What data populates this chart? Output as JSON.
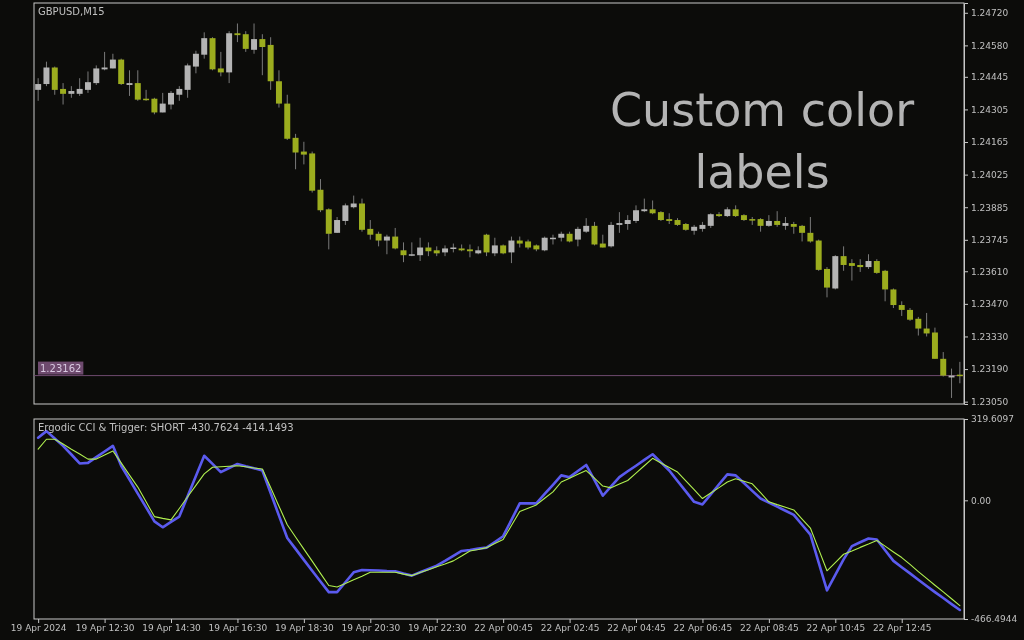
{
  "chart_data": [
    {
      "type": "candlestick",
      "title": "GBPUSD,M15",
      "categories": [
        null,
        null,
        null,
        null,
        null,
        null,
        null,
        null,
        null,
        null,
        null,
        null,
        null,
        null,
        null,
        null,
        null,
        null,
        null,
        null,
        null,
        null,
        null,
        null,
        null,
        null,
        null,
        null,
        null,
        null,
        null,
        null,
        null,
        null,
        null,
        null,
        null,
        null,
        null,
        null,
        null,
        null,
        null,
        null,
        null,
        null,
        null,
        null,
        null,
        null,
        null,
        null,
        null,
        null,
        null,
        null,
        null,
        null,
        null,
        null,
        null,
        null,
        null,
        null,
        null,
        null,
        null,
        null,
        null,
        null,
        null,
        null,
        null,
        null,
        null,
        null,
        null,
        null,
        null,
        null,
        null,
        null,
        null,
        null,
        null,
        null,
        null,
        null,
        null,
        null,
        null,
        null,
        null,
        null,
        null,
        null,
        null,
        null,
        null,
        null,
        null,
        null,
        null,
        null,
        null,
        null,
        null,
        null,
        null,
        null,
        null,
        null
      ],
      "ohlc": [
        [
          1.24389,
          1.24439,
          1.24342,
          1.24414
        ],
        [
          1.24414,
          1.2451,
          1.24405,
          1.24485
        ],
        [
          1.24485,
          1.24489,
          1.24368,
          1.24389
        ],
        [
          1.24393,
          1.24418,
          1.24326,
          1.24372
        ],
        [
          1.24372,
          1.24405,
          1.24355,
          1.24384
        ],
        [
          1.24372,
          1.24439,
          1.24363,
          1.24393
        ],
        [
          1.24389,
          1.24468,
          1.24376,
          1.24422
        ],
        [
          1.24418,
          1.24494,
          1.2441,
          1.24481
        ],
        [
          1.24477,
          1.24552,
          1.24473,
          1.24485
        ],
        [
          1.24481,
          1.24544,
          1.24481,
          1.24519
        ],
        [
          1.24519,
          1.24523,
          1.2441,
          1.24414
        ],
        [
          1.2441,
          1.24473,
          1.24363,
          1.24418
        ],
        [
          1.24418,
          1.24473,
          1.24342,
          1.24347
        ],
        [
          1.24351,
          1.24389,
          1.24342,
          1.24347
        ],
        [
          1.24351,
          1.24355,
          1.24284,
          1.24292
        ],
        [
          1.24292,
          1.24376,
          1.24292,
          1.2433
        ],
        [
          1.24326,
          1.24384,
          1.24305,
          1.24376
        ],
        [
          1.24368,
          1.24405,
          1.24342,
          1.24393
        ],
        [
          1.24389,
          1.24502,
          1.24355,
          1.24494
        ],
        [
          1.24489,
          1.24557,
          1.2446,
          1.24544
        ],
        [
          1.2454,
          1.24636,
          1.24523,
          1.24611
        ],
        [
          1.24611,
          1.24615,
          1.24473,
          1.24477
        ],
        [
          1.24481,
          1.24552,
          1.24447,
          1.24464
        ],
        [
          1.24464,
          1.24641,
          1.24418,
          1.24632
        ],
        [
          1.24632,
          1.24674,
          1.24594,
          1.24624
        ],
        [
          1.24628,
          1.24641,
          1.24552,
          1.24565
        ],
        [
          1.24561,
          1.24674,
          1.24544,
          1.24607
        ],
        [
          1.24607,
          1.24628,
          1.24452,
          1.24573
        ],
        [
          1.24582,
          1.24615,
          1.24389,
          1.24426
        ],
        [
          1.24426,
          1.24473,
          1.24313,
          1.2433
        ],
        [
          1.2433,
          1.24368,
          1.24174,
          1.24179
        ],
        [
          1.24183,
          1.242,
          1.24048,
          1.2412
        ],
        [
          1.24124,
          1.24166,
          1.24069,
          1.24111
        ],
        [
          1.24116,
          1.24124,
          1.23948,
          1.23956
        ],
        [
          1.2396,
          1.24006,
          1.23864,
          1.23872
        ],
        [
          1.23876,
          1.2388,
          1.23704,
          1.23771
        ],
        [
          1.23775,
          1.23843,
          1.23775,
          1.2383
        ],
        [
          1.23826,
          1.23901,
          1.23809,
          1.23893
        ],
        [
          1.23885,
          1.23935,
          1.2388,
          1.23901
        ],
        [
          1.23901,
          1.23922,
          1.2378,
          1.23788
        ],
        [
          1.23792,
          1.2383,
          1.23746,
          1.23767
        ],
        [
          1.23771,
          1.2378,
          1.23717,
          1.23742
        ],
        [
          1.23742,
          1.23767,
          1.23683,
          1.23759
        ],
        [
          1.23759,
          1.23796,
          1.23704,
          1.23708
        ],
        [
          1.237,
          1.23734,
          1.23649,
          1.23679
        ],
        [
          1.23679,
          1.23734,
          1.23675,
          1.23683
        ],
        [
          1.23679,
          1.23754,
          1.23654,
          1.23712
        ],
        [
          1.23712,
          1.23734,
          1.23675,
          1.23696
        ],
        [
          1.237,
          1.23717,
          1.23675,
          1.23687
        ],
        [
          1.23691,
          1.23721,
          1.23675,
          1.23708
        ],
        [
          1.23708,
          1.23729,
          1.23691,
          1.23712
        ],
        [
          1.23708,
          1.23725,
          1.23696,
          1.237
        ],
        [
          1.23704,
          1.23725,
          1.2367,
          1.23696
        ],
        [
          1.23687,
          1.23717,
          1.23683,
          1.237
        ],
        [
          1.23767,
          1.23771,
          1.23675,
          1.23691
        ],
        [
          1.23687,
          1.23754,
          1.23675,
          1.23721
        ],
        [
          1.23721,
          1.23725,
          1.23683,
          1.23687
        ],
        [
          1.23691,
          1.23759,
          1.23645,
          1.23742
        ],
        [
          1.23742,
          1.23759,
          1.23712,
          1.23729
        ],
        [
          1.23738,
          1.23746,
          1.23704,
          1.23712
        ],
        [
          1.23721,
          1.23725,
          1.23696,
          1.23704
        ],
        [
          1.237,
          1.23759,
          1.23696,
          1.23754
        ],
        [
          1.2375,
          1.23767,
          1.23725,
          1.23754
        ],
        [
          1.23754,
          1.2378,
          1.23738,
          1.23771
        ],
        [
          1.23771,
          1.2378,
          1.23734,
          1.23738
        ],
        [
          1.23746,
          1.23801,
          1.23717,
          1.23792
        ],
        [
          1.2378,
          1.23838,
          1.23775,
          1.23805
        ],
        [
          1.23805,
          1.23822,
          1.23721,
          1.23725
        ],
        [
          1.23729,
          1.23767,
          1.23712,
          1.23712
        ],
        [
          1.23717,
          1.23822,
          1.23712,
          1.23809
        ],
        [
          1.23809,
          1.23864,
          1.23775,
          1.23817
        ],
        [
          1.23813,
          1.23851,
          1.23788,
          1.2383
        ],
        [
          1.23826,
          1.23893,
          1.23817,
          1.23872
        ],
        [
          1.23868,
          1.23922,
          1.23864,
          1.23876
        ],
        [
          1.23876,
          1.23914,
          1.23855,
          1.23859
        ],
        [
          1.23864,
          1.23868,
          1.23826,
          1.2383
        ],
        [
          1.23834,
          1.23859,
          1.23813,
          1.23826
        ],
        [
          1.2383,
          1.23838,
          1.23805,
          1.23809
        ],
        [
          1.23813,
          1.23817,
          1.23784,
          1.23788
        ],
        [
          1.23784,
          1.23809,
          1.23767,
          1.23801
        ],
        [
          1.23792,
          1.23822,
          1.2378,
          1.23809
        ],
        [
          1.23805,
          1.23859,
          1.23796,
          1.23855
        ],
        [
          1.23855,
          1.23864,
          1.23843,
          1.23847
        ],
        [
          1.23847,
          1.23885,
          1.23843,
          1.23876
        ],
        [
          1.23876,
          1.23893,
          1.23843,
          1.23847
        ],
        [
          1.23851,
          1.23855,
          1.23826,
          1.2383
        ],
        [
          1.23834,
          1.23843,
          1.23809,
          1.2383
        ],
        [
          1.23834,
          1.23838,
          1.2378,
          1.23805
        ],
        [
          1.23805,
          1.23851,
          1.23801,
          1.23826
        ],
        [
          1.23826,
          1.23868,
          1.23801,
          1.23809
        ],
        [
          1.23805,
          1.23843,
          1.23788,
          1.23817
        ],
        [
          1.23813,
          1.23822,
          1.23771,
          1.23801
        ],
        [
          1.23805,
          1.23809,
          1.23738,
          1.23775
        ],
        [
          1.23775,
          1.23843,
          1.23733,
          1.23738
        ],
        [
          1.23742,
          1.23746,
          1.23612,
          1.23616
        ],
        [
          1.2362,
          1.23628,
          1.23498,
          1.2354
        ],
        [
          1.23536,
          1.23679,
          1.23532,
          1.23675
        ],
        [
          1.23675,
          1.23717,
          1.23612,
          1.23637
        ],
        [
          1.23645,
          1.23662,
          1.2357,
          1.23633
        ],
        [
          1.23637,
          1.23662,
          1.23607,
          1.23628
        ],
        [
          1.23628,
          1.23683,
          1.2362,
          1.23654
        ],
        [
          1.23654,
          1.23662,
          1.23599,
          1.23603
        ],
        [
          1.23612,
          1.23616,
          1.23481,
          1.23532
        ],
        [
          1.23532,
          1.23536,
          1.23452,
          1.23465
        ],
        [
          1.23465,
          1.23481,
          1.23418,
          1.23444
        ],
        [
          1.23444,
          1.23452,
          1.23397,
          1.23402
        ],
        [
          1.23406,
          1.23414,
          1.23334,
          1.23364
        ],
        [
          1.23364,
          1.23431,
          1.2333,
          1.23343
        ],
        [
          1.23347,
          1.23368,
          1.23234,
          1.23234
        ],
        [
          1.23234,
          1.23263,
          1.23158,
          1.23162
        ],
        [
          1.23154,
          1.23192,
          1.23066,
          1.23162
        ],
        [
          1.23166,
          1.23221,
          1.23129,
          1.23162
        ]
      ],
      "colors": [
        "#b4b4b4",
        "#b4b4b4",
        "#9cad1e",
        "#9cad1e",
        "#b4b4b4",
        "#b4b4b4",
        "#b4b4b4",
        "#b4b4b4",
        "#b4b4b4",
        "#b4b4b4",
        "#9cad1e",
        "#b4b4b4",
        "#9cad1e",
        "#9cad1e",
        "#9cad1e",
        "#b4b4b4",
        "#b4b4b4",
        "#b4b4b4",
        "#b4b4b4",
        "#b4b4b4",
        "#b4b4b4",
        "#9cad1e",
        "#9cad1e",
        "#b4b4b4",
        "#9cad1e",
        "#9cad1e",
        "#b4b4b4",
        "#9cad1e",
        "#9cad1e",
        "#9cad1e",
        "#9cad1e",
        "#9cad1e",
        "#9cad1e",
        "#9cad1e",
        "#9cad1e",
        "#9cad1e",
        "#b4b4b4",
        "#b4b4b4",
        "#b4b4b4",
        "#9cad1e",
        "#9cad1e",
        "#9cad1e",
        "#b4b4b4",
        "#9cad1e",
        "#9cad1e",
        "#b4b4b4",
        "#b4b4b4",
        "#9cad1e",
        "#9cad1e",
        "#b4b4b4",
        "#b4b4b4",
        "#9cad1e",
        "#9cad1e",
        "#b4b4b4",
        "#9cad1e",
        "#b4b4b4",
        "#9cad1e",
        "#b4b4b4",
        "#9cad1e",
        "#9cad1e",
        "#9cad1e",
        "#b4b4b4",
        "#b4b4b4",
        "#b4b4b4",
        "#9cad1e",
        "#b4b4b4",
        "#b4b4b4",
        "#9cad1e",
        "#9cad1e",
        "#b4b4b4",
        "#b4b4b4",
        "#b4b4b4",
        "#b4b4b4",
        "#b4b4b4",
        "#9cad1e",
        "#9cad1e",
        "#9cad1e",
        "#9cad1e",
        "#9cad1e",
        "#b4b4b4",
        "#b4b4b4",
        "#b4b4b4",
        "#9cad1e",
        "#b4b4b4",
        "#9cad1e",
        "#9cad1e",
        "#9cad1e",
        "#9cad1e",
        "#b4b4b4",
        "#9cad1e",
        "#b4b4b4",
        "#9cad1e",
        "#9cad1e",
        "#9cad1e",
        "#9cad1e",
        "#9cad1e",
        "#b4b4b4",
        "#9cad1e",
        "#9cad1e",
        "#9cad1e",
        "#b4b4b4",
        "#9cad1e",
        "#9cad1e",
        "#9cad1e",
        "#9cad1e",
        "#9cad1e",
        "#9cad1e",
        "#9cad1e",
        "#9cad1e",
        "#9cad1e",
        "#b4b4b4",
        "#9cad1e"
      ],
      "ylim": [
        1.2304,
        1.24762
      ],
      "yticks": [
        {
          "value": 1.2472,
          "label": "1.24720"
        },
        {
          "value": 1.2458,
          "label": "1.24580"
        },
        1.24445,
        1.24305,
        1.24165,
        1.24025,
        1.23885,
        1.23745,
        {
          "value": 1.2361,
          "label": "1.23610"
        },
        {
          "value": 1.2347,
          "label": "1.23470"
        },
        {
          "value": 1.2333,
          "label": "1.23330"
        },
        {
          "value": 1.2319,
          "label": "1.23190"
        },
        {
          "value": 1.2305,
          "label": "1.23050"
        }
      ],
      "tick_labels": "y",
      "ref_lines": [
        {
          "axis": "y",
          "value": 1.23162,
          "label": "1.23162",
          "color": "#6e4a6e"
        }
      ],
      "annotations": [
        "Custom color labels"
      ]
    },
    {
      "type": "line",
      "title": "Ergodic CCI & Trigger: SHORT -430.7624 -414.1493",
      "series": [
        {
          "color": "#5b5bef",
          "values": [
            246,
            272,
            243,
            214,
            180,
            145,
            147,
            170,
            192,
            214,
            136,
            81,
            26,
            -28,
            -83,
            -106,
            -85,
            -64,
            16,
            96,
            175,
            143,
            111,
            127,
            143,
            134,
            126,
            117,
            29,
            -60,
            -148,
            -191,
            -234,
            -277,
            -319,
            -361,
            -361,
            -322,
            -283,
            -274,
            -275,
            -276,
            -278,
            -279,
            -288,
            -296,
            -283,
            -270,
            -257,
            -238,
            -218,
            -199,
            -195,
            -190,
            -186,
            -164,
            -141,
            -77,
            -12,
            -12,
            -12,
            25,
            61,
            98,
            91,
            115,
            139,
            79,
            18,
            55,
            91,
            114,
            136,
            159,
            181,
            149,
            117,
            76,
            35,
            -6,
            -16,
            23,
            63,
            102,
            98,
            68,
            37,
            7,
            -9,
            -25,
            -41,
            -57,
            -96,
            -135,
            -245,
            -354,
            -293,
            -232,
            -180,
            -165,
            -150,
            -154,
            -196,
            -238,
            -263,
            -287,
            -312,
            -337,
            -361,
            -384,
            -408,
            -431
          ]
        },
        {
          "color": "#b0f050",
          "values": [
            201,
            240,
            240,
            221,
            201,
            182,
            162,
            162,
            178,
            194,
            147,
            99,
            52,
            -6,
            -64,
            -71,
            -77,
            -32,
            14,
            59,
            104,
            130,
            132,
            134,
            136,
            132,
            127,
            123,
            50,
            -23,
            -96,
            -144,
            -192,
            -239,
            -287,
            -335,
            -341,
            -327,
            -312,
            -298,
            -283,
            -283,
            -283,
            -283,
            -290,
            -296,
            -284,
            -273,
            -261,
            -250,
            -238,
            -219,
            -199,
            -193,
            -186,
            -170,
            -154,
            -99,
            -44,
            -31,
            -18,
            8,
            33,
            72,
            87,
            102,
            117,
            87,
            56,
            49,
            64,
            78,
            107,
            136,
            165,
            147,
            129,
            111,
            76,
            42,
            7,
            29,
            50,
            72,
            85,
            75,
            65,
            30,
            -6,
            -17,
            -27,
            -38,
            -74,
            -109,
            -193,
            -277,
            -245,
            -212,
            -199,
            -185,
            -172,
            -158,
            -180,
            -203,
            -225,
            -252,
            -280,
            -307,
            -334,
            -360,
            -387,
            -414
          ]
        }
      ],
      "categories": [
        "19 Apr 2024",
        null,
        null,
        null,
        null,
        null,
        null,
        null,
        "19 Apr 12:30",
        null,
        null,
        null,
        null,
        null,
        null,
        null,
        "19 Apr 14:30",
        null,
        null,
        null,
        null,
        null,
        null,
        null,
        "19 Apr 16:30",
        null,
        null,
        null,
        null,
        null,
        null,
        null,
        "19 Apr 18:30",
        null,
        null,
        null,
        null,
        null,
        null,
        null,
        "19 Apr 20:30",
        null,
        null,
        null,
        null,
        null,
        null,
        null,
        "19 Apr 22:30",
        null,
        null,
        null,
        null,
        null,
        null,
        null,
        "22 Apr 00:45",
        null,
        null,
        null,
        null,
        null,
        null,
        null,
        "22 Apr 02:45",
        null,
        null,
        null,
        null,
        null,
        null,
        null,
        "22 Apr 04:45",
        null,
        null,
        null,
        null,
        null,
        null,
        null,
        "22 Apr 06:45",
        null,
        null,
        null,
        null,
        null,
        null,
        null,
        "22 Apr 08:45",
        null,
        null,
        null,
        null,
        null,
        null,
        null,
        "22 Apr 10:45",
        null,
        null,
        null,
        null,
        null,
        null,
        null,
        "22 Apr 12:45",
        null,
        null,
        null,
        null,
        null,
        null,
        null
      ],
      "ylim": [
        -466.4944,
        319.6097
      ],
      "yticks": [
        {
          "value": 319.6097,
          "label": "319.6097"
        },
        {
          "value": 0,
          "label": "0.00"
        },
        {
          "value": -466.4944,
          "label": "-466.4944"
        }
      ]
    }
  ]
}
